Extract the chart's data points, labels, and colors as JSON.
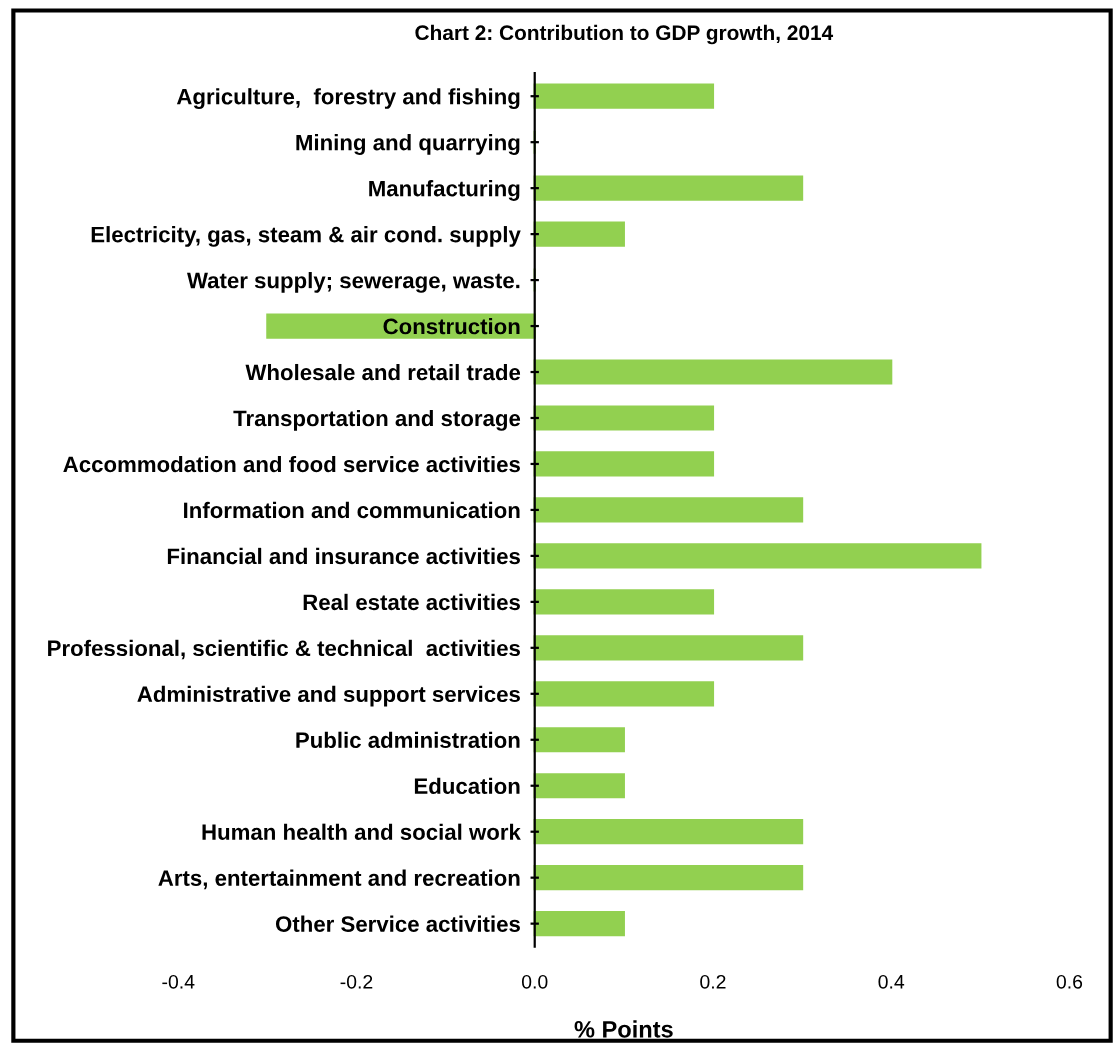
{
  "chart_data": {
    "type": "bar",
    "orientation": "horizontal",
    "title": "Chart 2: Contribution to GDP growth, 2014",
    "xlabel": "% Points",
    "categories": [
      "Agriculture,  forestry and fishing",
      "Mining and quarrying",
      "Manufacturing",
      "Electricity, gas, steam & air cond. supply",
      "Water supply; sewerage, waste.",
      "Construction",
      "Wholesale and retail trade",
      "Transportation and storage",
      "Accommodation and food service activities",
      "Information and communication",
      "Financial and insurance activities",
      "Real estate activities",
      "Professional, scientific & technical  activities",
      "Administrative and support services",
      "Public administration",
      "Education",
      "Human health and social work",
      "Arts, entertainment and recreation",
      "Other Service activities"
    ],
    "values": [
      0.2,
      0,
      0.3,
      0.1,
      0,
      -0.3,
      0.4,
      0.2,
      0.2,
      0.3,
      0.5,
      0.2,
      0.3,
      0.2,
      0.1,
      0.1,
      0.3,
      0.3,
      0.1
    ],
    "color": "#92d050",
    "xlim": [
      -0.4,
      0.6
    ],
    "xticks": [
      {
        "value": -0.4,
        "label": "-0.4"
      },
      {
        "value": -0.2,
        "label": "-0.2"
      },
      {
        "value": 0,
        "label": "0.0"
      },
      {
        "value": 0.2,
        "label": "0.2"
      },
      {
        "value": 0.4,
        "label": "0.4"
      },
      {
        "value": 0.6,
        "label": "0.6"
      }
    ],
    "grid": false
  }
}
